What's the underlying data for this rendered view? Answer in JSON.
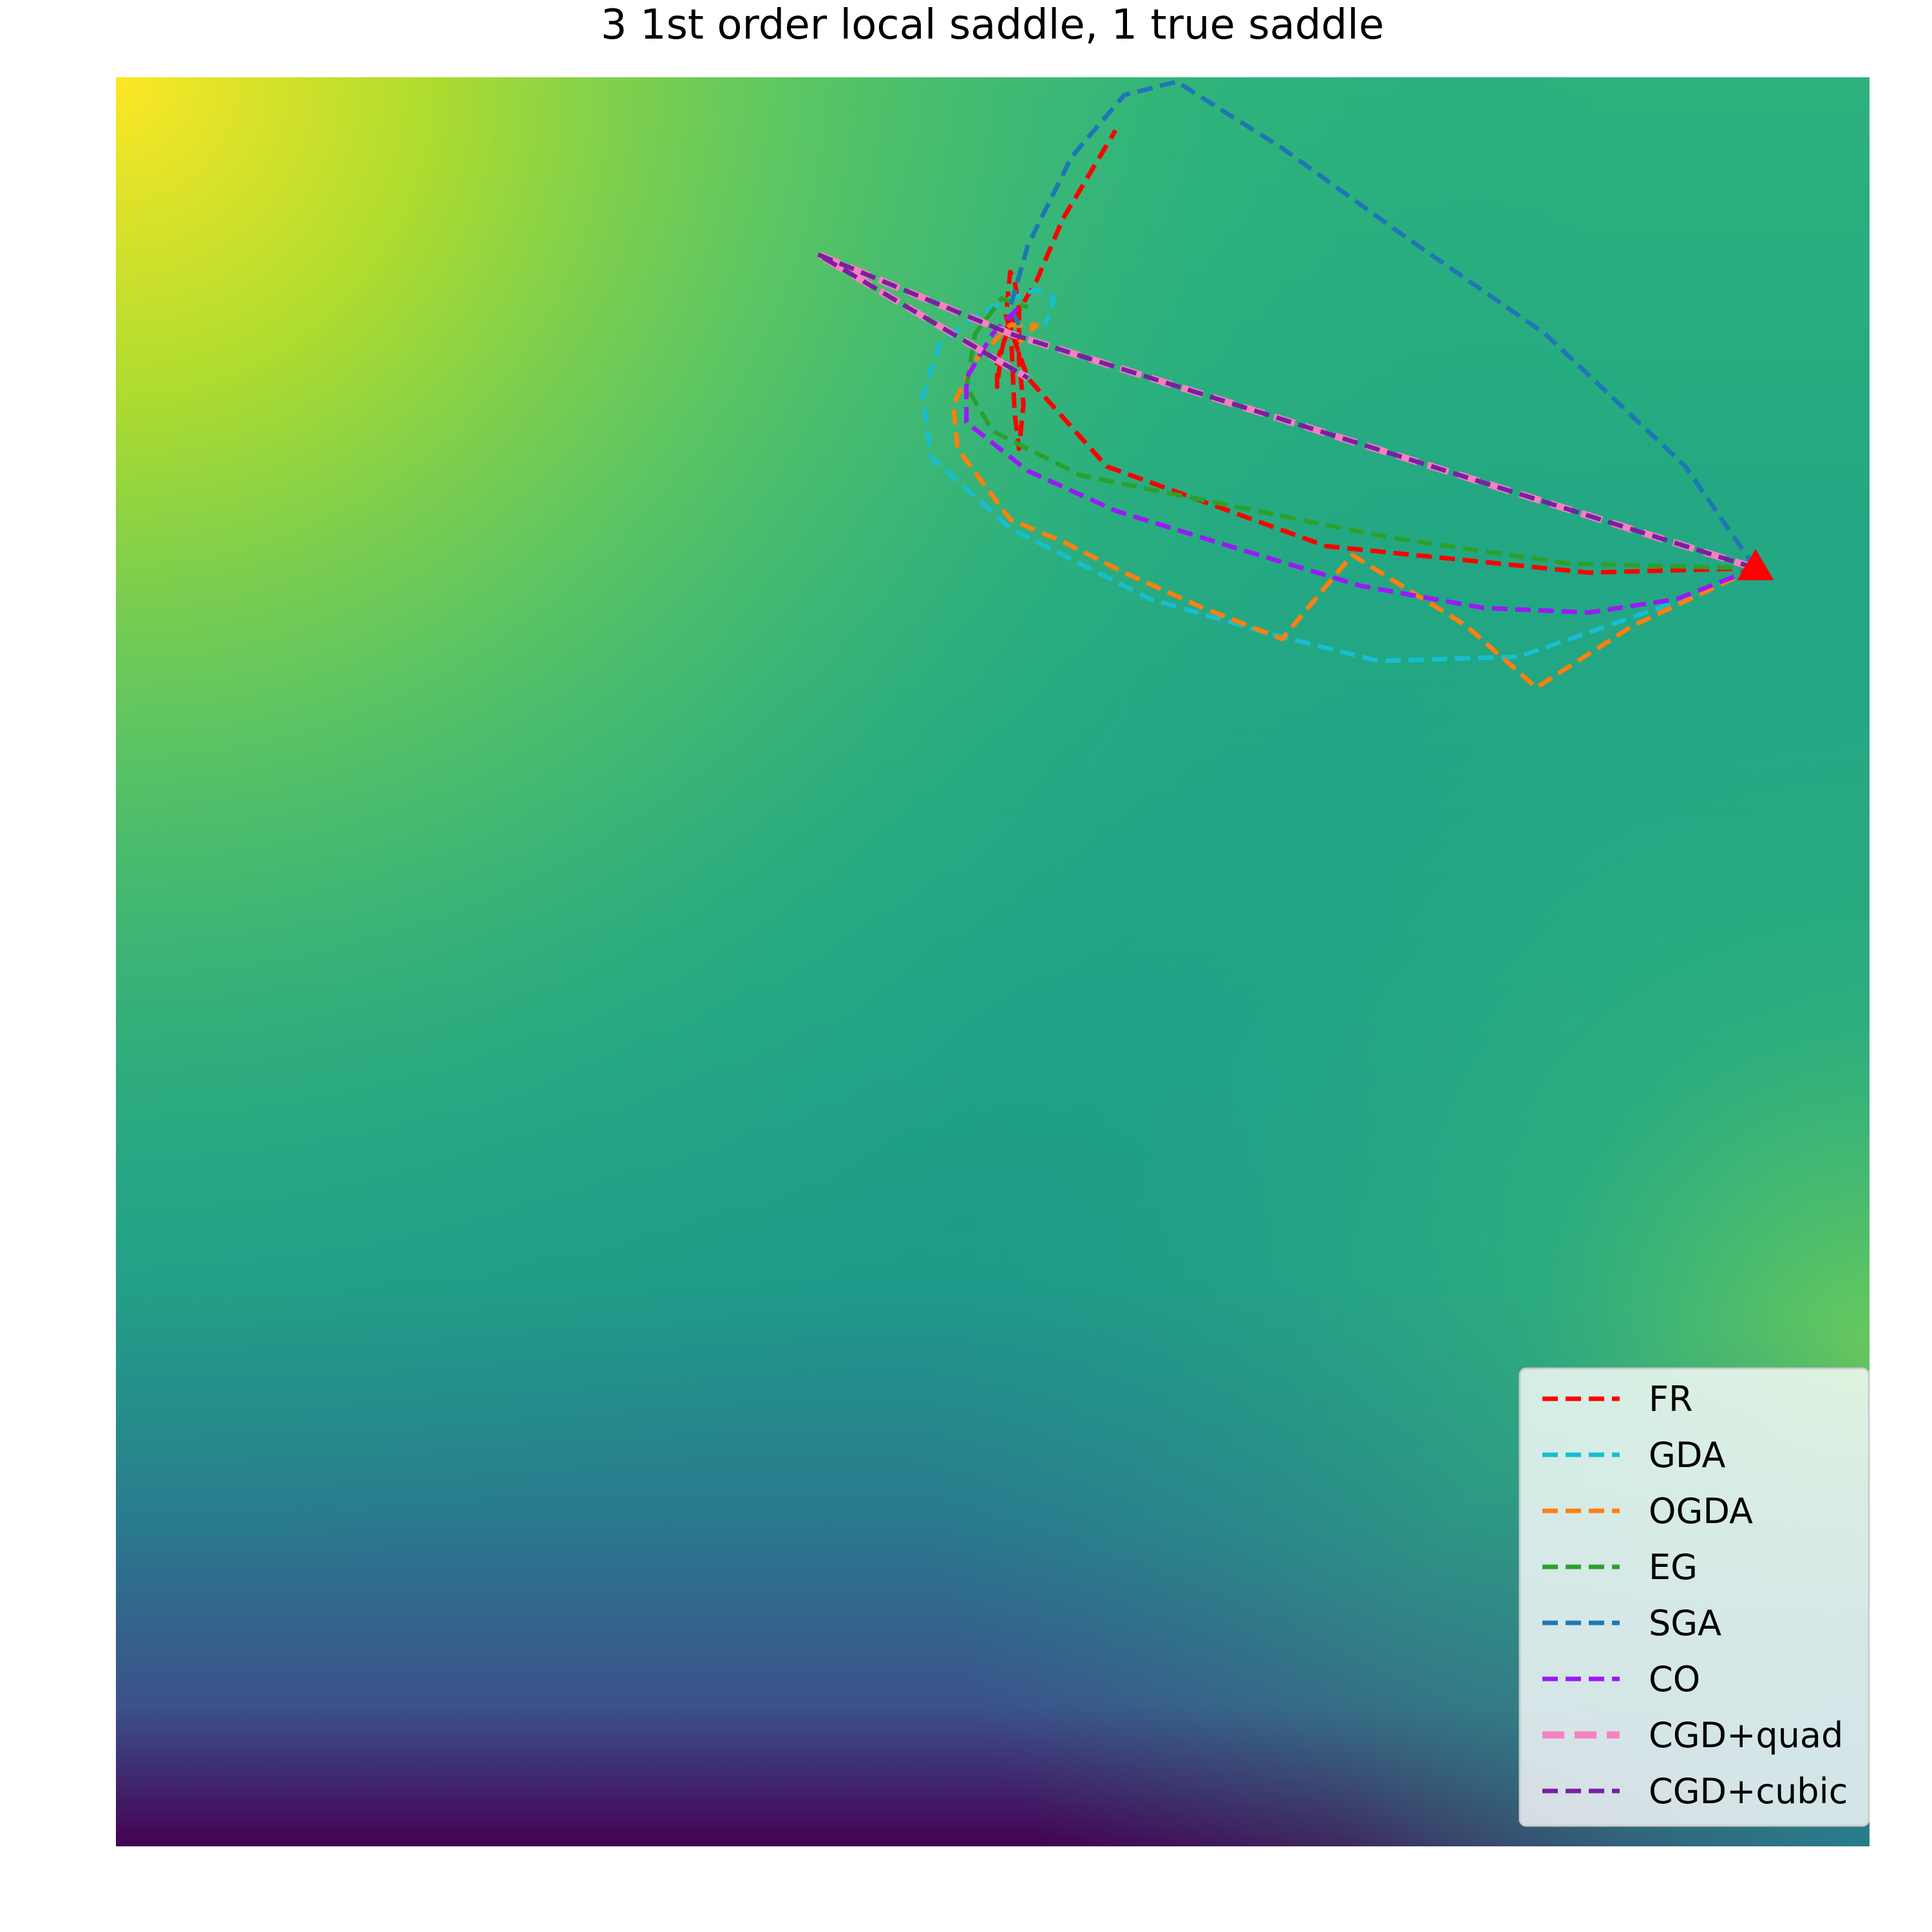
{
  "chart_data": {
    "type": "line",
    "title": "3 1st order local saddle, 1 true saddle",
    "xlabel": "",
    "ylabel": "",
    "axes_visible": false,
    "grid": false,
    "background": "filled contour (viridis colormap)",
    "colormap": [
      "#440154",
      "#3b528b",
      "#21918c",
      "#5ec962",
      "#fde725"
    ],
    "legend_position": "lower-right",
    "marker": {
      "shape": "triangle",
      "color": "#ff0000",
      "x": 0.87,
      "y": 0.445
    },
    "xlim": [
      -1.0,
      1.0
    ],
    "ylim": [
      -1.0,
      1.0
    ],
    "series": [
      {
        "name": "FR",
        "color": "#ff0000",
        "dashed": true,
        "width": "normal",
        "x": [
          0.87,
          0.68,
          0.38,
          0.13,
          0.04,
          0.015,
          0.02,
          0.025,
          0.03,
          0.03,
          0.035,
          0.03,
          0.025,
          0.02,
          0.01,
          0.005,
          0.005,
          0.02,
          0.05,
          0.08,
          0.14
        ],
        "y": [
          0.445,
          0.44,
          0.47,
          0.56,
          0.66,
          0.73,
          0.78,
          0.77,
          0.74,
          0.68,
          0.63,
          0.58,
          0.62,
          0.73,
          0.69,
          0.65,
          0.68,
          0.72,
          0.77,
          0.84,
          0.94
        ]
      },
      {
        "name": "GDA",
        "color": "#17becf",
        "dashed": true,
        "width": "normal",
        "x": [
          0.87,
          0.76,
          0.6,
          0.44,
          0.32,
          0.18,
          0.02,
          -0.07,
          -0.08,
          -0.06,
          -0.02,
          0.02,
          0.05,
          0.07,
          0.06
        ],
        "y": [
          0.445,
          0.4,
          0.345,
          0.34,
          0.37,
          0.41,
          0.49,
          0.57,
          0.64,
          0.7,
          0.73,
          0.75,
          0.76,
          0.75,
          0.72
        ]
      },
      {
        "name": "OGDA",
        "color": "#ff7f0e",
        "dashed": true,
        "width": "normal",
        "x": [
          0.87,
          0.73,
          0.62,
          0.54,
          0.41,
          0.33,
          0.24,
          0.15,
          0.08,
          0.02,
          -0.04,
          -0.045,
          -0.02,
          0.02,
          0.05,
          0.03
        ],
        "y": [
          0.445,
          0.38,
          0.31,
          0.38,
          0.46,
          0.365,
          0.4,
          0.44,
          0.475,
          0.5,
          0.58,
          0.63,
          0.68,
          0.72,
          0.72,
          0.7
        ]
      },
      {
        "name": "EG",
        "color": "#2ca02c",
        "dashed": true,
        "width": "normal",
        "x": [
          0.87,
          0.66,
          0.45,
          0.25,
          0.1,
          0.0,
          -0.03,
          -0.02,
          0.01,
          0.04
        ],
        "y": [
          0.445,
          0.45,
          0.48,
          0.52,
          0.55,
          0.6,
          0.65,
          0.71,
          0.75,
          0.74
        ]
      },
      {
        "name": "SGA",
        "color": "#1f77b4",
        "dashed": true,
        "width": "normal",
        "x": [
          0.87,
          0.79,
          0.63,
          0.47,
          0.33,
          0.21,
          0.15,
          0.09,
          0.04,
          0.02,
          0.03
        ],
        "y": [
          0.445,
          0.56,
          0.71,
          0.82,
          0.92,
          0.995,
          0.98,
          0.91,
          0.81,
          0.74,
          0.72
        ]
      },
      {
        "name": "CO",
        "color": "#9b19f5",
        "dashed": true,
        "width": "normal",
        "x": [
          0.87,
          0.78,
          0.68,
          0.56,
          0.42,
          0.27,
          0.14,
          0.04,
          -0.03,
          -0.03,
          0.0,
          0.03
        ],
        "y": [
          0.445,
          0.41,
          0.395,
          0.4,
          0.425,
          0.47,
          0.51,
          0.555,
          0.61,
          0.66,
          0.71,
          0.74
        ]
      },
      {
        "name": "CGD+quad",
        "color": "#f781bf",
        "dashed": true,
        "width": "thick",
        "x": [
          0.87,
          0.02,
          -0.2,
          0.04
        ],
        "y": [
          0.445,
          0.71,
          0.8,
          0.66
        ]
      },
      {
        "name": "CGD+cubic",
        "color": "#7b1fa2",
        "dashed": true,
        "width": "normal",
        "x": [
          0.87,
          0.02,
          -0.2,
          0.04
        ],
        "y": [
          0.445,
          0.71,
          0.8,
          0.66
        ]
      }
    ]
  }
}
